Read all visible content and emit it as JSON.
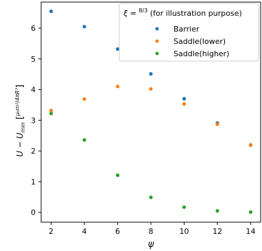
{
  "chart_data": {
    "type": "scatter",
    "x": [
      2,
      4,
      6,
      8,
      10,
      12,
      14
    ],
    "xticks": [
      2,
      4,
      6,
      8,
      10,
      12,
      14
    ],
    "yticks": [
      0,
      1,
      2,
      3,
      4,
      5,
      6
    ],
    "xlim": [
      1.4,
      14.6
    ],
    "ylim": [
      -0.32,
      6.85
    ],
    "xlabel": "ψ",
    "ylabel": {
      "main": "U − U",
      "subscript": "min",
      "unit_numerator": "μ₀m²",
      "unit_denominator": "4πR³"
    },
    "legend": {
      "placement": "top-right",
      "title": {
        "prefix": "ξ = ",
        "frac_numerator": "8",
        "frac_denominator": "3",
        "suffix": " (for illustration purpose)"
      }
    },
    "series": [
      {
        "name": "Barrier",
        "color": "#1f77b4",
        "values": [
          6.55,
          6.05,
          5.32,
          4.51,
          3.7,
          2.91,
          2.19
        ]
      },
      {
        "name": "Saddle(lower)",
        "color": "#ff7f0e",
        "values": [
          3.32,
          3.69,
          4.1,
          4.02,
          3.53,
          2.87,
          2.2
        ]
      },
      {
        "name": "Saddle(higher)",
        "color": "#2ca02c",
        "values": [
          3.22,
          2.36,
          1.21,
          0.49,
          0.17,
          0.05,
          0.01
        ]
      }
    ]
  }
}
